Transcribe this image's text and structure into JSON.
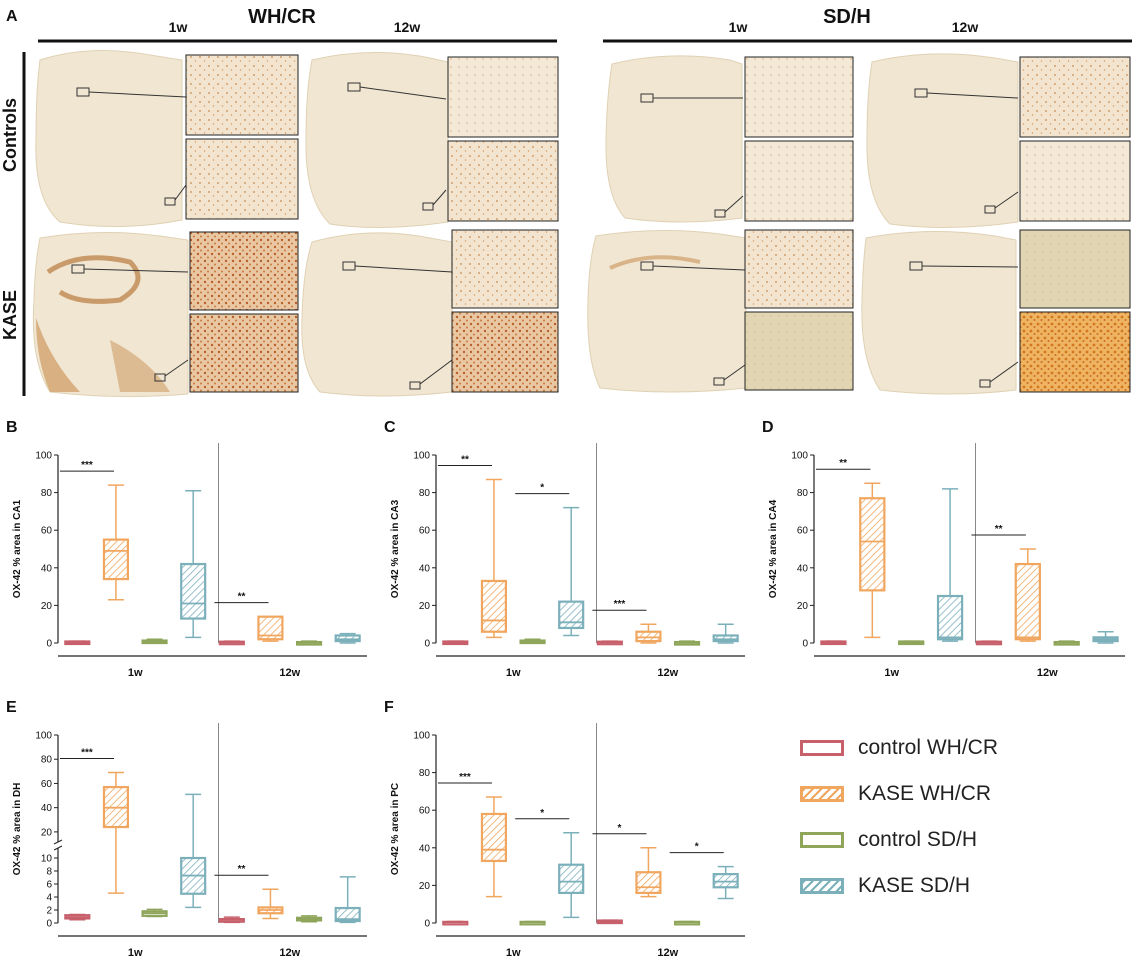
{
  "panel_a": {
    "label": "A",
    "strain_headers": [
      "WH/CR",
      "SD/H"
    ],
    "time_headers": [
      "1w",
      "12w",
      "1w",
      "12w"
    ],
    "row_labels": [
      "Controls",
      "KASE"
    ]
  },
  "legend": {
    "items": [
      {
        "label": "control WH/CR",
        "color": "#c7606b",
        "hatch": false
      },
      {
        "label": "KASE WH/CR",
        "color": "#f0a65e",
        "hatch": true
      },
      {
        "label": "control SD/H",
        "color": "#8ea55a",
        "hatch": false
      },
      {
        "label": "KASE SD/H",
        "color": "#7bb0bb",
        "hatch": true
      }
    ]
  },
  "colors": {
    "control_whcr": "#c7606b",
    "kase_whcr": "#f0a65e",
    "control_sdh": "#8ea55a",
    "kase_sdh": "#7bb0bb",
    "slice": "#f1e6d2",
    "axis": "#222222"
  },
  "chart_data": [
    {
      "panel": "B",
      "type": "box",
      "ylabel": "OX-42 % area in CA1",
      "ylim": [
        0,
        100
      ],
      "yticks": [
        "0",
        "20",
        "40",
        "60",
        "80",
        "100"
      ],
      "groups": [
        "1w",
        "12w"
      ],
      "series_names": [
        "control WH/CR",
        "KASE WH/CR",
        "control SD/H",
        "KASE SD/H"
      ],
      "boxes": [
        [
          [
            0,
            0.3,
            0.5,
            0.8,
            1
          ],
          [
            23,
            34,
            49,
            55,
            84
          ],
          [
            0,
            0.5,
            1,
            1.3,
            2
          ],
          [
            3,
            13,
            21,
            42,
            81
          ]
        ],
        [
          [
            0,
            0.2,
            0.4,
            0.7,
            1
          ],
          [
            1,
            2,
            4,
            14,
            14
          ],
          [
            0,
            0.2,
            0.3,
            0.5,
            1
          ],
          [
            0,
            1,
            2,
            4,
            5
          ]
        ]
      ],
      "sig": [
        {
          "group": 0,
          "from": 0,
          "to": 1,
          "label": "***"
        },
        {
          "group": 1,
          "from": 0,
          "to": 1,
          "label": "**"
        }
      ]
    },
    {
      "panel": "C",
      "type": "box",
      "ylabel": "OX-42 % area in CA3",
      "ylim": [
        0,
        100
      ],
      "yticks": [
        "0",
        "20",
        "40",
        "60",
        "80",
        "100"
      ],
      "groups": [
        "1w",
        "12w"
      ],
      "series_names": [
        "control WH/CR",
        "KASE WH/CR",
        "control SD/H",
        "KASE SD/H"
      ],
      "boxes": [
        [
          [
            0,
            0.3,
            0.5,
            0.8,
            1
          ],
          [
            3,
            6,
            12,
            33,
            87
          ],
          [
            0,
            0.5,
            1,
            1.3,
            2
          ],
          [
            4,
            8,
            11,
            22,
            72
          ]
        ],
        [
          [
            0,
            0.2,
            0.4,
            0.7,
            1
          ],
          [
            0,
            1,
            3,
            6,
            10
          ],
          [
            0,
            0.2,
            0.3,
            0.5,
            1
          ],
          [
            0,
            1,
            2,
            4,
            10
          ]
        ]
      ],
      "sig": [
        {
          "group": 0,
          "from": 0,
          "to": 1,
          "label": "**"
        },
        {
          "group": 0,
          "from": 2,
          "to": 3,
          "label": "*"
        },
        {
          "group": 1,
          "from": 0,
          "to": 1,
          "label": "***"
        }
      ]
    },
    {
      "panel": "D",
      "type": "box",
      "ylabel": "OX-42 % area in CA4",
      "ylim": [
        0,
        100
      ],
      "yticks": [
        "0",
        "20",
        "40",
        "60",
        "80",
        "100"
      ],
      "groups": [
        "1w",
        "12w"
      ],
      "series_names": [
        "control WH/CR",
        "KASE WH/CR",
        "control SD/H",
        "KASE SD/H"
      ],
      "boxes": [
        [
          [
            0,
            0.3,
            0.5,
            0.8,
            1
          ],
          [
            3,
            28,
            54,
            77,
            85
          ],
          [
            0,
            0.3,
            0.5,
            0.8,
            1
          ],
          [
            1,
            2,
            3,
            25,
            82
          ]
        ],
        [
          [
            0,
            0.2,
            0.4,
            0.7,
            1
          ],
          [
            1,
            2,
            3,
            42,
            50
          ],
          [
            0,
            0.2,
            0.3,
            0.5,
            1
          ],
          [
            0,
            1,
            2,
            3,
            6
          ]
        ]
      ],
      "sig": [
        {
          "group": 0,
          "from": 0,
          "to": 1,
          "label": "**"
        },
        {
          "group": 1,
          "from": 0,
          "to": 1,
          "label": "**"
        }
      ]
    },
    {
      "panel": "E",
      "type": "box",
      "ylabel": "OX-42 % area in DH",
      "ylim": [
        0,
        100
      ],
      "axis_break": true,
      "yticks_lower": [
        "0",
        "2",
        "4",
        "6",
        "8",
        "10"
      ],
      "yticks_upper": [
        "20",
        "40",
        "60",
        "80",
        "100"
      ],
      "groups": [
        "1w",
        "12w"
      ],
      "series_names": [
        "control WH/CR",
        "KASE WH/CR",
        "control SD/H",
        "KASE SD/H"
      ],
      "boxes": [
        [
          [
            0.5,
            0.7,
            0.9,
            1.2,
            1.3
          ],
          [
            4.6,
            24,
            40,
            57,
            69
          ],
          [
            1,
            1.1,
            1.5,
            1.8,
            2.1
          ],
          [
            2.4,
            4.5,
            7.3,
            10,
            51
          ]
        ],
        [
          [
            0.1,
            0.2,
            0.3,
            0.6,
            0.9
          ],
          [
            0.7,
            1.5,
            2,
            2.4,
            5.2
          ],
          [
            0.2,
            0.4,
            0.6,
            0.8,
            1.1
          ],
          [
            0.1,
            0.3,
            0.6,
            2.3,
            7.1
          ]
        ]
      ],
      "sig": [
        {
          "group": 0,
          "from": 0,
          "to": 1,
          "label": "***"
        },
        {
          "group": 1,
          "from": 0,
          "to": 1,
          "label": "**"
        }
      ]
    },
    {
      "panel": "F",
      "type": "box",
      "ylabel": "OX-42 % area in PC",
      "ylim": [
        0,
        100
      ],
      "yticks": [
        "0",
        "20",
        "40",
        "60",
        "80",
        "100"
      ],
      "groups": [
        "1w",
        "12w"
      ],
      "series_names": [
        "control WH/CR",
        "KASE WH/CR",
        "control SD/H",
        "KASE SD/H"
      ],
      "boxes": [
        [
          [
            0,
            0.2,
            0.4,
            0.6,
            0.8
          ],
          [
            14,
            33,
            39,
            58,
            67
          ],
          [
            0,
            0.2,
            0.4,
            0.6,
            0.8
          ],
          [
            3,
            16,
            22,
            31,
            48
          ]
        ],
        [
          [
            0,
            0.5,
            1,
            1.3,
            1.5
          ],
          [
            14,
            16,
            19,
            27,
            40
          ],
          [
            0,
            0.2,
            0.4,
            0.6,
            0.8
          ],
          [
            13,
            19,
            22,
            26,
            30
          ]
        ]
      ],
      "sig": [
        {
          "group": 0,
          "from": 0,
          "to": 1,
          "label": "***"
        },
        {
          "group": 0,
          "from": 2,
          "to": 3,
          "label": "*"
        },
        {
          "group": 1,
          "from": 0,
          "to": 1,
          "label": "*"
        },
        {
          "group": 1,
          "from": 2,
          "to": 3,
          "label": "*"
        }
      ]
    }
  ]
}
